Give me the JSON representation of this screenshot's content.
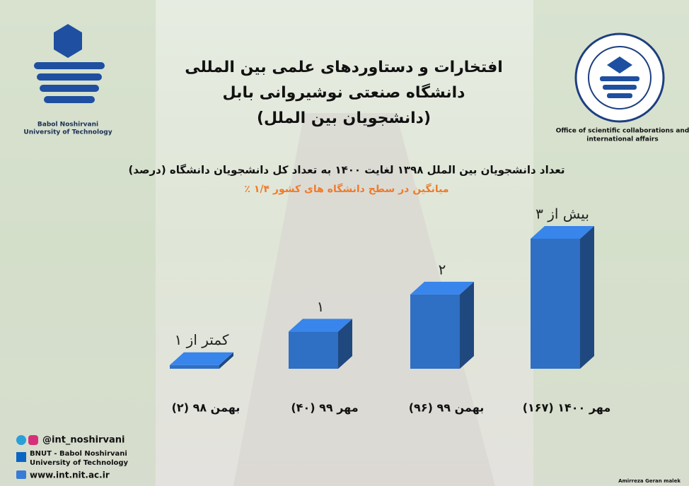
{
  "chart_data": {
    "type": "bar3d",
    "title": [
      "افتخارات و دستاوردهای علمی بین المللی",
      "دانشگاه صنعتی نوشیروانی بابل",
      "(دانشجویان بین الملل)"
    ],
    "subtitle": "تعداد دانشجویان بین الملل ۱۳۹۸ لغایت ۱۴۰۰ به تعداد کل دانشجویان دانشگاه (درصد)",
    "note": "میانگین در سطح دانشگاه های کشور ۱/۴ ٪",
    "categories": [
      "بهمن ۹۸ (۲)",
      "مهر ۹۹ (۴۰)",
      "بهمن ۹۹ (۹۶)",
      "مهر ۱۴۰۰ (۱۶۷)"
    ],
    "values": [
      0.1,
      1,
      2,
      3.5
    ],
    "value_labels": [
      "کمتر از ۱",
      "۱",
      "۲",
      "بیش از ۳"
    ],
    "color": "#2f6fc4",
    "branding": {
      "left_logo": [
        "Babol Noshirvani",
        "University of Technology"
      ],
      "right_logo": [
        "Office of scientific collaborations and",
        "international affairs"
      ],
      "social": "@int_noshirvani",
      "linkedin": [
        "BNUT - Babol Noshirvani",
        "University of Technology"
      ],
      "website": "www.int.nit.ac.ir",
      "credit": "Amirreza Geran malek"
    }
  }
}
